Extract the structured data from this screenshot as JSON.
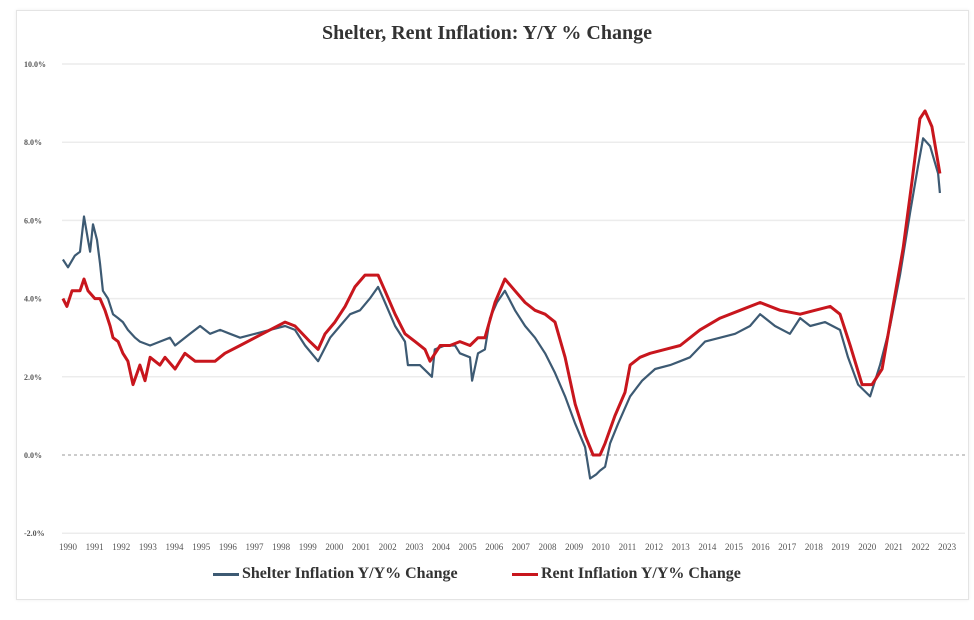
{
  "chart_data": {
    "type": "line",
    "title": "Shelter, Rent Inflation: Y/Y % Change",
    "xlabel": "",
    "ylabel": "",
    "ylim": [
      -2,
      10
    ],
    "xlim": [
      1989.8,
      2023.8
    ],
    "y_ticks": [
      "10.0%",
      "8.0%",
      "6.0%",
      "4.0%",
      "2.0%",
      "0.0%",
      "-2.0%"
    ],
    "y_tick_values": [
      10,
      8,
      6,
      4,
      2,
      0,
      -2
    ],
    "x_ticks": [
      "1990",
      "1991",
      "1992",
      "1993",
      "1994",
      "1995",
      "1996",
      "1997",
      "1998",
      "1999",
      "2000",
      "2001",
      "2002",
      "2003",
      "2004",
      "2005",
      "2006",
      "2007",
      "2008",
      "2009",
      "2010",
      "2011",
      "2012",
      "2013",
      "2014",
      "2015",
      "2016",
      "2017",
      "2018",
      "2019",
      "2020",
      "2021",
      "2022",
      "2023"
    ],
    "grid": true,
    "zero_line": "dashed",
    "legend_position": "bottom",
    "series": [
      {
        "name": "Shelter Inflation Y/Y% Change",
        "color": "#3d5a73",
        "points": [
          [
            1989.81,
            5.0
          ],
          [
            1990.0,
            4.8
          ],
          [
            1990.26,
            5.1
          ],
          [
            1990.45,
            5.2
          ],
          [
            1990.6,
            6.1
          ],
          [
            1990.75,
            5.5
          ],
          [
            1990.83,
            5.2
          ],
          [
            1990.94,
            5.9
          ],
          [
            1991.09,
            5.5
          ],
          [
            1991.2,
            4.9
          ],
          [
            1991.31,
            4.2
          ],
          [
            1991.5,
            4.0
          ],
          [
            1991.69,
            3.6
          ],
          [
            1991.88,
            3.5
          ],
          [
            1992.06,
            3.4
          ],
          [
            1992.25,
            3.2
          ],
          [
            1992.52,
            3.0
          ],
          [
            1992.7,
            2.9
          ],
          [
            1993.08,
            2.8
          ],
          [
            1993.45,
            2.9
          ],
          [
            1993.83,
            3.0
          ],
          [
            1994.02,
            2.8
          ],
          [
            1994.58,
            3.1
          ],
          [
            1994.96,
            3.3
          ],
          [
            1995.33,
            3.1
          ],
          [
            1995.71,
            3.2
          ],
          [
            1996.08,
            3.1
          ],
          [
            1996.46,
            3.0
          ],
          [
            1997.02,
            3.1
          ],
          [
            1997.58,
            3.2
          ],
          [
            1998.15,
            3.3
          ],
          [
            1998.52,
            3.2
          ],
          [
            1998.9,
            2.8
          ],
          [
            1999.39,
            2.4
          ],
          [
            1999.84,
            3.0
          ],
          [
            2000.21,
            3.3
          ],
          [
            2000.59,
            3.6
          ],
          [
            2000.96,
            3.7
          ],
          [
            2001.33,
            4.0
          ],
          [
            2001.64,
            4.3
          ],
          [
            2001.9,
            3.9
          ],
          [
            2002.28,
            3.3
          ],
          [
            2002.65,
            2.9
          ],
          [
            2002.76,
            2.3
          ],
          [
            2003.21,
            2.3
          ],
          [
            2003.66,
            2.0
          ],
          [
            2003.77,
            2.7
          ],
          [
            2004.15,
            2.8
          ],
          [
            2004.53,
            2.8
          ],
          [
            2004.71,
            2.6
          ],
          [
            2005.09,
            2.5
          ],
          [
            2005.17,
            1.9
          ],
          [
            2005.39,
            2.6
          ],
          [
            2005.65,
            2.7
          ],
          [
            2005.84,
            3.5
          ],
          [
            2006.1,
            3.9
          ],
          [
            2006.4,
            4.2
          ],
          [
            2006.78,
            3.7
          ],
          [
            2007.16,
            3.3
          ],
          [
            2007.53,
            3.0
          ],
          [
            2007.91,
            2.6
          ],
          [
            2008.28,
            2.1
          ],
          [
            2008.66,
            1.5
          ],
          [
            2009.04,
            0.8
          ],
          [
            2009.41,
            0.2
          ],
          [
            2009.6,
            -0.6
          ],
          [
            2009.82,
            -0.5
          ],
          [
            2009.97,
            -0.4
          ],
          [
            2010.16,
            -0.3
          ],
          [
            2010.35,
            0.3
          ],
          [
            2010.65,
            0.8
          ],
          [
            2011.1,
            1.5
          ],
          [
            2011.55,
            1.9
          ],
          [
            2012.04,
            2.2
          ],
          [
            2012.6,
            2.3
          ],
          [
            2012.98,
            2.4
          ],
          [
            2013.35,
            2.5
          ],
          [
            2013.91,
            2.9
          ],
          [
            2014.48,
            3.0
          ],
          [
            2015.04,
            3.1
          ],
          [
            2015.6,
            3.3
          ],
          [
            2015.98,
            3.6
          ],
          [
            2016.54,
            3.3
          ],
          [
            2017.1,
            3.1
          ],
          [
            2017.48,
            3.5
          ],
          [
            2017.86,
            3.3
          ],
          [
            2018.42,
            3.4
          ],
          [
            2018.98,
            3.2
          ],
          [
            2019.28,
            2.5
          ],
          [
            2019.66,
            1.8
          ],
          [
            2020.11,
            1.5
          ],
          [
            2020.48,
            2.3
          ],
          [
            2020.86,
            3.3
          ],
          [
            2021.23,
            4.6
          ],
          [
            2021.61,
            6.2
          ],
          [
            2021.91,
            7.4
          ],
          [
            2022.1,
            8.1
          ],
          [
            2022.36,
            7.9
          ],
          [
            2022.66,
            7.2
          ],
          [
            2022.73,
            6.7
          ]
        ]
      },
      {
        "name": "Rent Inflation Y/Y% Change",
        "color": "#c8161d",
        "points": [
          [
            1989.81,
            4.0
          ],
          [
            1989.96,
            3.8
          ],
          [
            1990.15,
            4.2
          ],
          [
            1990.45,
            4.2
          ],
          [
            1990.6,
            4.5
          ],
          [
            1990.75,
            4.2
          ],
          [
            1991.01,
            4.0
          ],
          [
            1991.2,
            4.0
          ],
          [
            1991.39,
            3.7
          ],
          [
            1991.58,
            3.3
          ],
          [
            1991.69,
            3.0
          ],
          [
            1991.88,
            2.9
          ],
          [
            1992.06,
            2.6
          ],
          [
            1992.25,
            2.4
          ],
          [
            1992.44,
            1.8
          ],
          [
            1992.7,
            2.3
          ],
          [
            1992.89,
            1.9
          ],
          [
            1993.08,
            2.5
          ],
          [
            1993.45,
            2.3
          ],
          [
            1993.64,
            2.5
          ],
          [
            1994.02,
            2.2
          ],
          [
            1994.39,
            2.6
          ],
          [
            1994.77,
            2.4
          ],
          [
            1995.14,
            2.4
          ],
          [
            1995.52,
            2.4
          ],
          [
            1995.89,
            2.6
          ],
          [
            1996.46,
            2.8
          ],
          [
            1997.02,
            3.0
          ],
          [
            1997.58,
            3.2
          ],
          [
            1998.15,
            3.4
          ],
          [
            1998.52,
            3.3
          ],
          [
            1999.08,
            2.9
          ],
          [
            1999.39,
            2.7
          ],
          [
            1999.65,
            3.1
          ],
          [
            2000.02,
            3.4
          ],
          [
            2000.4,
            3.8
          ],
          [
            2000.77,
            4.3
          ],
          [
            2001.15,
            4.6
          ],
          [
            2001.64,
            4.6
          ],
          [
            2001.9,
            4.2
          ],
          [
            2002.28,
            3.6
          ],
          [
            2002.65,
            3.1
          ],
          [
            2003.03,
            2.9
          ],
          [
            2003.4,
            2.7
          ],
          [
            2003.59,
            2.4
          ],
          [
            2003.97,
            2.8
          ],
          [
            2004.34,
            2.8
          ],
          [
            2004.71,
            2.9
          ],
          [
            2005.09,
            2.8
          ],
          [
            2005.39,
            3.0
          ],
          [
            2005.65,
            3.0
          ],
          [
            2006.03,
            3.9
          ],
          [
            2006.4,
            4.5
          ],
          [
            2006.78,
            4.2
          ],
          [
            2007.16,
            3.9
          ],
          [
            2007.53,
            3.7
          ],
          [
            2007.91,
            3.6
          ],
          [
            2008.28,
            3.4
          ],
          [
            2008.66,
            2.5
          ],
          [
            2009.04,
            1.3
          ],
          [
            2009.41,
            0.5
          ],
          [
            2009.71,
            0.0
          ],
          [
            2009.97,
            0.0
          ],
          [
            2010.16,
            0.3
          ],
          [
            2010.53,
            1.0
          ],
          [
            2010.91,
            1.6
          ],
          [
            2011.1,
            2.3
          ],
          [
            2011.47,
            2.5
          ],
          [
            2011.85,
            2.6
          ],
          [
            2012.41,
            2.7
          ],
          [
            2012.98,
            2.8
          ],
          [
            2013.72,
            3.2
          ],
          [
            2014.48,
            3.5
          ],
          [
            2015.23,
            3.7
          ],
          [
            2015.98,
            3.9
          ],
          [
            2016.73,
            3.7
          ],
          [
            2017.48,
            3.6
          ],
          [
            2018.04,
            3.7
          ],
          [
            2018.61,
            3.8
          ],
          [
            2018.98,
            3.6
          ],
          [
            2019.36,
            2.8
          ],
          [
            2019.81,
            1.8
          ],
          [
            2020.18,
            1.8
          ],
          [
            2020.56,
            2.2
          ],
          [
            2020.97,
            3.8
          ],
          [
            2021.35,
            5.3
          ],
          [
            2021.68,
            7.0
          ],
          [
            2021.98,
            8.6
          ],
          [
            2022.17,
            8.8
          ],
          [
            2022.43,
            8.4
          ],
          [
            2022.73,
            7.2
          ]
        ]
      }
    ]
  }
}
